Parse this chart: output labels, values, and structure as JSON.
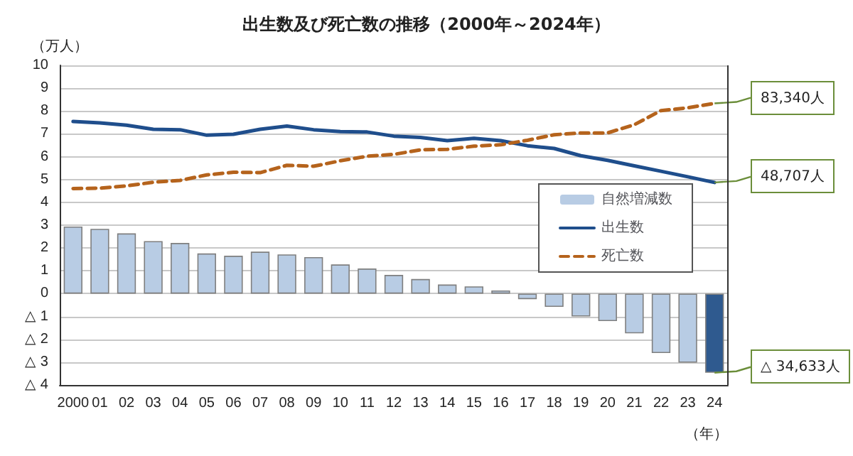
{
  "chart_data": {
    "type": "bar",
    "title": "出生数及び死亡数の推移（2000年～2024年）",
    "ylabel": "（万人）",
    "xlabel": "（年）",
    "categories": [
      "2000",
      "01",
      "02",
      "03",
      "04",
      "05",
      "06",
      "07",
      "08",
      "09",
      "10",
      "11",
      "12",
      "13",
      "14",
      "15",
      "16",
      "17",
      "18",
      "19",
      "20",
      "21",
      "22",
      "23",
      "24"
    ],
    "series": [
      {
        "name": "自然増減数",
        "color": "#b8cce4",
        "colors": [
          "#b8cce4",
          "#b8cce4",
          "#b8cce4",
          "#b8cce4",
          "#b8cce4",
          "#b8cce4",
          "#b8cce4",
          "#b8cce4",
          "#b8cce4",
          "#b8cce4",
          "#b8cce4",
          "#b8cce4",
          "#b8cce4",
          "#b8cce4",
          "#b8cce4",
          "#b8cce4",
          "#b8cce4",
          "#b8cce4",
          "#b8cce4",
          "#b8cce4",
          "#b8cce4",
          "#b8cce4",
          "#b8cce4",
          "#b8cce4",
          "#2f5a8f"
        ],
        "values": [
          2.94,
          2.84,
          2.64,
          2.3,
          2.22,
          1.76,
          1.66,
          1.84,
          1.72,
          1.6,
          1.28,
          1.1,
          0.82,
          0.64,
          0.4,
          0.32,
          0.14,
          -0.24,
          -0.58,
          -1.0,
          -1.2,
          -1.74,
          -2.6,
          -3.02,
          -3.4633
        ]
      },
      {
        "name": "出生数",
        "type": "line",
        "color": "#1f4e8c",
        "line_style": "solid",
        "values": [
          7.54,
          7.48,
          7.38,
          7.2,
          7.18,
          6.94,
          6.98,
          7.2,
          7.34,
          7.18,
          7.1,
          7.08,
          6.9,
          6.84,
          6.7,
          6.8,
          6.7,
          6.48,
          6.36,
          6.04,
          5.84,
          5.6,
          5.36,
          5.12,
          4.8707
        ]
      },
      {
        "name": "死亡数",
        "type": "line",
        "color": "#b5631c",
        "line_style": "dashed",
        "values": [
          4.6,
          4.62,
          4.72,
          4.88,
          4.96,
          5.2,
          5.32,
          5.3,
          5.62,
          5.58,
          5.82,
          6.02,
          6.1,
          6.3,
          6.32,
          6.46,
          6.52,
          6.72,
          6.96,
          7.04,
          7.04,
          7.4,
          8.02,
          8.14,
          8.334
        ]
      }
    ],
    "ylim": [
      -4,
      10
    ],
    "yticks": [
      {
        "value": -4,
        "label": "△ 4"
      },
      {
        "value": -3,
        "label": "△ 3"
      },
      {
        "value": -2,
        "label": "△ 2"
      },
      {
        "value": -1,
        "label": "△ 1"
      },
      0,
      1,
      2,
      3,
      4,
      5,
      6,
      7,
      8,
      9,
      10
    ],
    "grid": "y",
    "legend": "right",
    "marker": "none",
    "annotations": [
      {
        "text": "83,340人",
        "x": "24",
        "y": 8.334
      },
      {
        "text": "48,707人",
        "x": "24",
        "y": 4.8707
      },
      {
        "text": "△ 34,633人",
        "x": "24",
        "y": -3.4633
      }
    ]
  }
}
